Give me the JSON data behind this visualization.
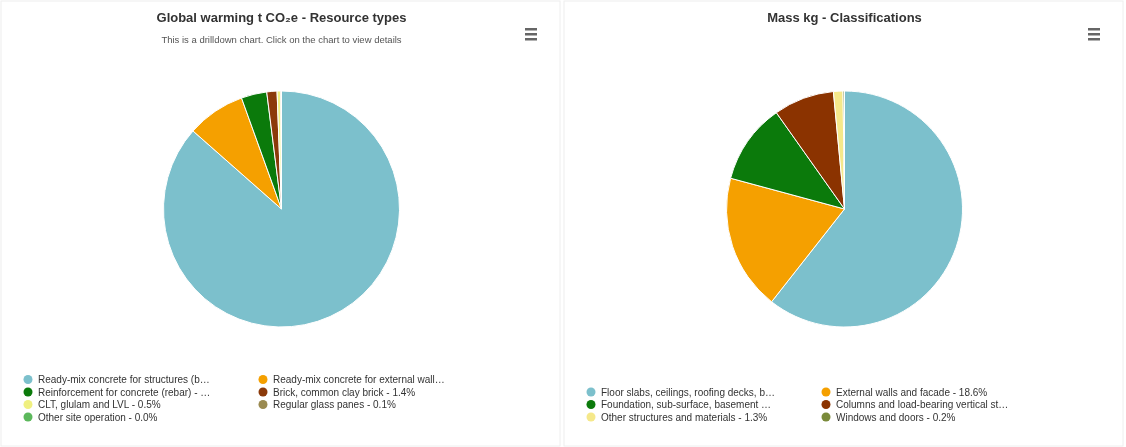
{
  "chart_data": [
    {
      "type": "pie",
      "title": "Global warming t CO₂e - Resource types",
      "subtitle": "This is a drilldown chart. Click on the chart to view details",
      "categories": [
        "Ready-mix concrete for structures (b…",
        "Ready-mix concrete for external wall…",
        "Reinforcement for concrete (rebar) - …",
        "Brick, common clay brick - 1.4%",
        "CLT, glulam and LVL - 0.5%",
        "Regular glass panes - 0.1%",
        "Other site operation - 0.0%"
      ],
      "values": [
        86.5,
        8.0,
        3.5,
        1.4,
        0.5,
        0.1,
        0.0
      ],
      "colors": [
        "#7cc0cc",
        "#f5a000",
        "#0b7a0b",
        "#8b3a0a",
        "#f0f080",
        "#9a8a50",
        "#5cb85c"
      ],
      "legend": "bottom"
    },
    {
      "type": "pie",
      "title": "Mass kg - Classifications",
      "categories": [
        "Floor slabs, ceilings, roofing decks, b…",
        "External walls and facade - 18.6%",
        "Foundation, sub-surface, basement …",
        "Columns and load-bearing vertical st…",
        "Other structures and materials - 1.3%",
        "Windows and doors - 0.2%"
      ],
      "values": [
        60.6,
        18.6,
        11.0,
        8.3,
        1.3,
        0.2
      ],
      "colors": [
        "#7cc0cc",
        "#f5a000",
        "#0b7a0b",
        "#8b3300",
        "#f5e88a",
        "#7a8a3a"
      ],
      "legend": "bottom"
    }
  ]
}
